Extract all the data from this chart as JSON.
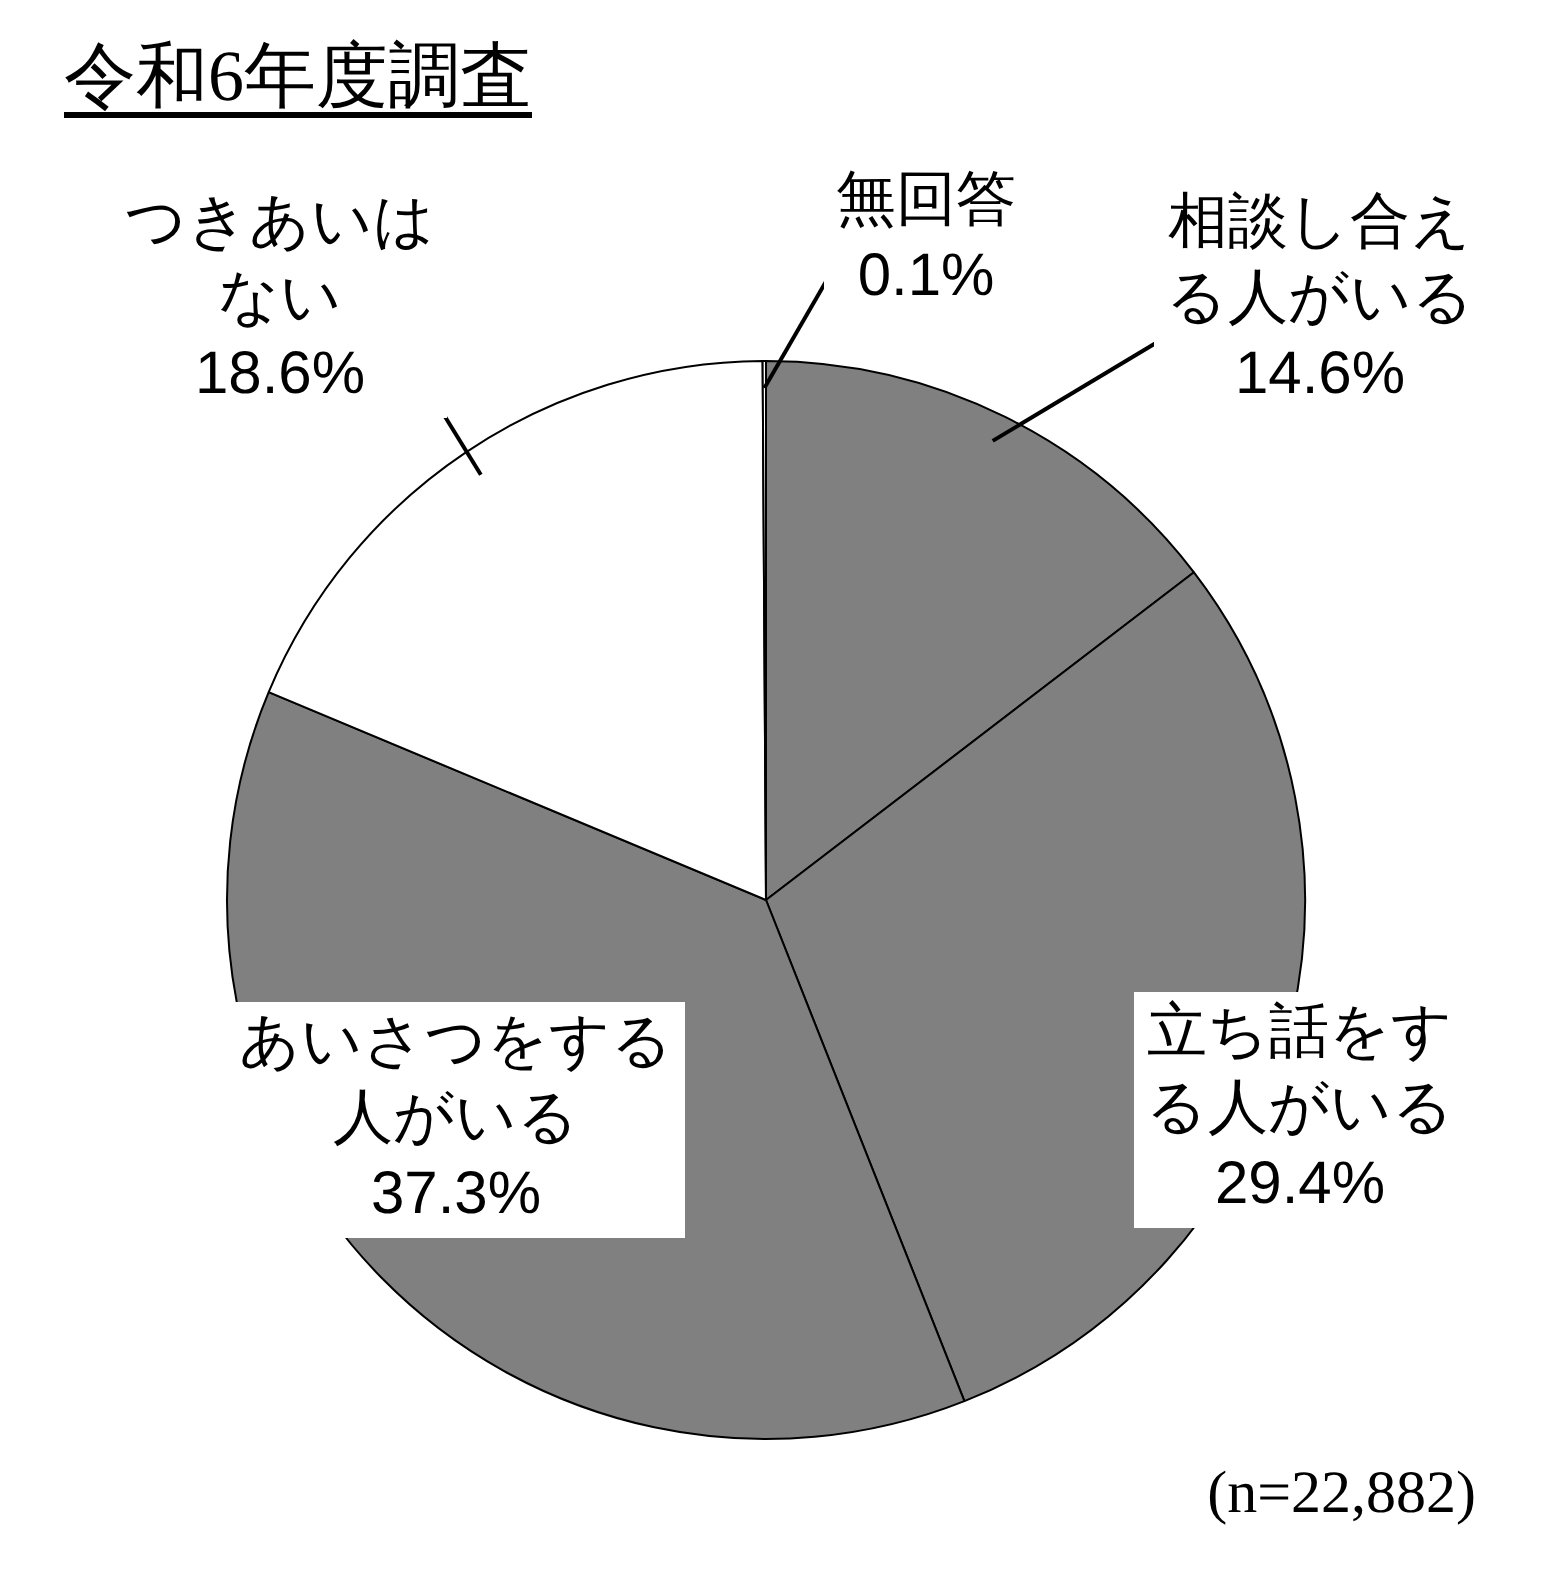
{
  "chart_data": {
    "type": "pie",
    "title": "令和6年度調査",
    "categories": [
      "相談し合える人がいる",
      "立ち話をする人がいる",
      "あいさつをする人がいる",
      "つきあいはない",
      "無回答"
    ],
    "values": [
      14.6,
      29.4,
      37.3,
      18.6,
      0.1
    ],
    "value_labels": [
      "14.6%",
      "29.4%",
      "37.3%",
      "18.6%",
      "0.1%"
    ],
    "colors": [
      "#808080",
      "#808080",
      "#808080",
      "#ffffff",
      "#ffffff"
    ],
    "legend": false,
    "annotations": [
      "(n=22,882)"
    ]
  }
}
